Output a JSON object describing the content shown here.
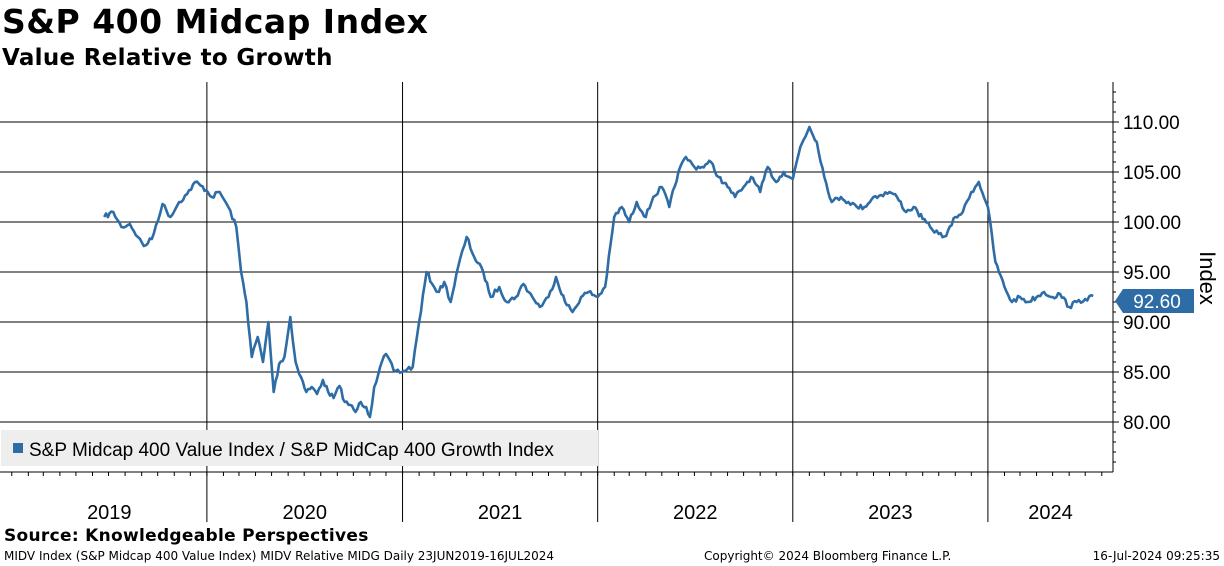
{
  "title": "S&P 400 Midcap Index",
  "subtitle": "Value Relative to Growth",
  "footer": {
    "source": "Source: Knowledgeable Perspectives",
    "left": "MIDV Index (S&P Midcap 400 Value Index) MIDV Relative MIDG  Daily 23JUN2019-16JUL2024",
    "middle": "Copyright© 2024 Bloomberg Finance L.P.",
    "right": "16-Jul-2024 09:25:35"
  },
  "colors": {
    "line": "#2e6ca6",
    "grid": "#000000",
    "legend_bg": "#eeeeee"
  },
  "chart_data": {
    "type": "line",
    "ylabel": "Index",
    "ylim": [
      75,
      114
    ],
    "yticks": [
      "80.00",
      "85.00",
      "90.00",
      "95.00",
      "100.00",
      "105.00",
      "110.00"
    ],
    "x_years": [
      "2019",
      "2020",
      "2021",
      "2022",
      "2023",
      "2024"
    ],
    "grid": true,
    "legend_position": "bottom-left",
    "last_value_label": "92.60",
    "series": [
      {
        "name": "S&P Midcap 400 Value Index / S&P MidCap 400 Growth Index",
        "x": [
          "2019-06-23",
          "2019-07-10",
          "2019-07-25",
          "2019-08-10",
          "2019-08-25",
          "2019-09-05",
          "2019-09-20",
          "2019-10-10",
          "2019-10-25",
          "2019-11-10",
          "2019-11-25",
          "2019-12-10",
          "2019-12-31",
          "2020-01-10",
          "2020-01-25",
          "2020-02-10",
          "2020-02-25",
          "2020-03-05",
          "2020-03-15",
          "2020-03-25",
          "2020-04-05",
          "2020-04-15",
          "2020-04-25",
          "2020-05-05",
          "2020-05-15",
          "2020-05-25",
          "2020-06-05",
          "2020-06-10",
          "2020-06-15",
          "2020-06-25",
          "2020-07-05",
          "2020-07-15",
          "2020-07-25",
          "2020-08-05",
          "2020-08-15",
          "2020-08-25",
          "2020-09-05",
          "2020-09-15",
          "2020-09-25",
          "2020-10-05",
          "2020-10-15",
          "2020-10-25",
          "2020-11-01",
          "2020-11-09",
          "2020-11-20",
          "2020-12-01",
          "2020-12-15",
          "2020-12-31",
          "2021-01-10",
          "2021-01-20",
          "2021-02-01",
          "2021-02-15",
          "2021-03-01",
          "2021-03-10",
          "2021-03-20",
          "2021-04-01",
          "2021-04-15",
          "2021-05-01",
          "2021-05-15",
          "2021-06-01",
          "2021-06-15",
          "2021-07-01",
          "2021-07-15",
          "2021-08-01",
          "2021-08-15",
          "2021-09-01",
          "2021-09-15",
          "2021-10-01",
          "2021-10-15",
          "2021-11-01",
          "2021-11-15",
          "2021-12-01",
          "2021-12-15",
          "2022-01-01",
          "2022-01-15",
          "2022-02-01",
          "2022-02-15",
          "2022-03-01",
          "2022-03-15",
          "2022-04-01",
          "2022-04-15",
          "2022-05-01",
          "2022-05-15",
          "2022-06-01",
          "2022-06-15",
          "2022-07-01",
          "2022-07-15",
          "2022-08-01",
          "2022-08-15",
          "2022-09-01",
          "2022-09-15",
          "2022-10-01",
          "2022-10-15",
          "2022-11-01",
          "2022-11-15",
          "2022-12-01",
          "2022-12-15",
          "2023-01-01",
          "2023-01-15",
          "2023-02-01",
          "2023-02-15",
          "2023-03-01",
          "2023-03-15",
          "2023-04-01",
          "2023-04-15",
          "2023-05-01",
          "2023-05-15",
          "2023-06-01",
          "2023-06-15",
          "2023-07-01",
          "2023-07-15",
          "2023-08-01",
          "2023-08-15",
          "2023-09-01",
          "2023-09-15",
          "2023-10-01",
          "2023-10-15",
          "2023-11-01",
          "2023-11-15",
          "2023-12-01",
          "2023-12-15",
          "2024-01-01",
          "2024-01-15",
          "2024-02-01",
          "2024-02-15",
          "2024-03-01",
          "2024-03-15",
          "2024-04-01",
          "2024-04-15",
          "2024-05-01",
          "2024-05-15",
          "2024-06-01",
          "2024-06-15",
          "2024-07-01",
          "2024-07-16"
        ],
        "values": [
          100.5,
          101.0,
          99.5,
          99.8,
          98.5,
          97.6,
          98.3,
          101.8,
          100.5,
          102.0,
          102.8,
          104.0,
          103.2,
          102.5,
          103.0,
          101.5,
          99.5,
          95.0,
          92.0,
          86.5,
          88.5,
          86.0,
          90.0,
          83.0,
          85.8,
          86.5,
          90.5,
          88.0,
          86.0,
          84.5,
          83.0,
          83.5,
          82.8,
          84.2,
          83.0,
          82.4,
          83.6,
          82.0,
          81.7,
          81.0,
          82.0,
          81.5,
          80.5,
          83.5,
          85.5,
          86.8,
          85.2,
          85.0,
          85.3,
          85.5,
          90.0,
          95.0,
          93.5,
          93.0,
          94.0,
          92.0,
          95.5,
          98.5,
          96.5,
          95.0,
          92.5,
          93.5,
          92.0,
          92.5,
          93.8,
          92.5,
          91.5,
          92.5,
          94.5,
          92.0,
          91.0,
          92.5,
          93.0,
          92.5,
          93.5,
          100.5,
          101.5,
          100.0,
          102.0,
          100.5,
          102.5,
          103.5,
          101.5,
          105.0,
          106.5,
          105.5,
          105.5,
          106.0,
          104.5,
          103.5,
          102.5,
          103.5,
          104.5,
          103.0,
          105.5,
          104.0,
          105.0,
          104.3,
          107.5,
          109.5,
          108.0,
          104.5,
          102.0,
          102.5,
          102.0,
          101.5,
          101.5,
          102.5,
          102.7,
          103.0,
          102.5,
          101.0,
          101.5,
          100.3,
          99.5,
          98.8,
          98.6,
          100.5,
          101.0,
          103.0,
          104.0,
          101.5,
          96.0,
          93.5,
          92.0,
          92.5,
          92.0,
          92.5,
          93.0,
          92.5,
          92.8,
          91.5,
          92.0,
          92.3,
          92.6
        ]
      }
    ]
  }
}
